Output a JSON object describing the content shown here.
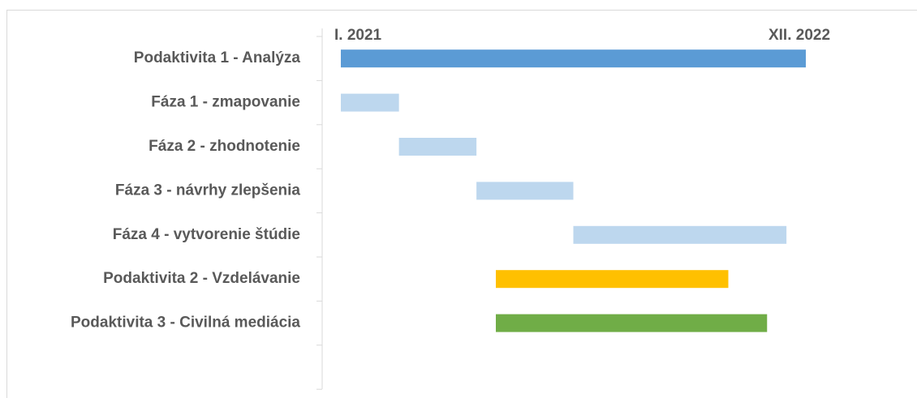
{
  "chart_data": {
    "type": "gantt",
    "categories": [
      "Podaktivita 1 - Analýza",
      "Fáza 1 - zmapovanie",
      "Fáza 2 - zhodnotenie",
      "Fáza 3 - návrhy zlepšenia",
      "Fáza 4 - vytvorenie štúdie",
      "Podaktivita 2 - Vzdelávanie",
      "Podaktivita 3 - Civilná mediácia"
    ],
    "start": [
      0,
      0,
      3,
      7,
      12,
      8,
      8
    ],
    "end": [
      24,
      3,
      7,
      12,
      23,
      20,
      22
    ],
    "colors": [
      "#5b9bd5",
      "#bdd7ee",
      "#bdd7ee",
      "#bdd7ee",
      "#bdd7ee",
      "#ffc000",
      "#70ad47"
    ],
    "xlim": [
      0,
      24
    ],
    "xticks": [
      {
        "value": 0,
        "label": "I. 2021"
      },
      {
        "value": 24,
        "label": "XII. 2022"
      }
    ]
  }
}
